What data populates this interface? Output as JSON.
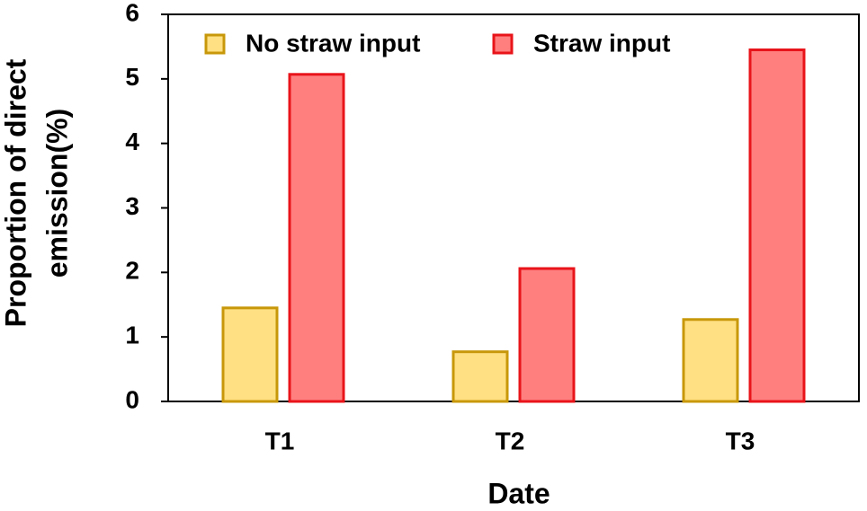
{
  "chart_data": {
    "type": "bar",
    "x_label": "Date",
    "y_label": [
      "Proportion of direct",
      "emission(%)"
    ],
    "categories": [
      "T1",
      "T2",
      "T3"
    ],
    "series": [
      {
        "name": "No straw input",
        "color": "#ffe083",
        "edge_color": "#c8980a",
        "values": [
          1.45,
          0.77,
          1.27
        ]
      },
      {
        "name": "Straw input",
        "color": "#ff7f7f",
        "edge_color": "#e8141a",
        "values": [
          5.07,
          2.06,
          5.45
        ]
      }
    ],
    "ylim": [
      0,
      6
    ],
    "yticks": [
      0,
      1,
      2,
      3,
      4,
      5,
      6
    ],
    "grid": false,
    "legend": "top-left"
  }
}
